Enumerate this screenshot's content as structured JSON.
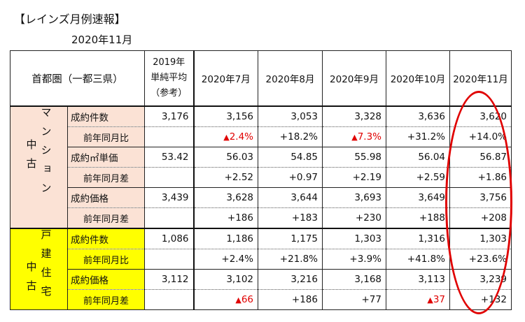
{
  "title": "【レインズ月例速報】",
  "subtitle": "2020年11月",
  "header": {
    "region": "首都圏（一都三県）",
    "avg_line1": "2019年",
    "avg_line2": "単純平均",
    "avg_line3": "（参考）",
    "months": [
      "2020年7月",
      "2020年8月",
      "2020年9月",
      "2020年10月",
      "2020年11月"
    ]
  },
  "mansion": {
    "side_left": "マンション",
    "side_right": "中古",
    "rows": [
      {
        "label": "成約件数",
        "avg": "3,176",
        "values": [
          "3,156",
          "3,053",
          "3,328",
          "3,636",
          "3,620"
        ]
      },
      {
        "label": "前年同月比",
        "avg": "",
        "values": [
          "2.4%",
          "+18.2%",
          "7.3%",
          "+31.2%",
          "+14.0%"
        ]
      },
      {
        "label": "成約㎡単価",
        "avg": "53.42",
        "values": [
          "56.03",
          "54.85",
          "55.98",
          "56.04",
          "56.87"
        ]
      },
      {
        "label": "前年同月差",
        "avg": "",
        "values": [
          "+2.52",
          "+0.97",
          "+2.19",
          "+2.59",
          "+1.86"
        ]
      },
      {
        "label": "成約価格",
        "avg": "3,439",
        "values": [
          "3,628",
          "3,644",
          "3,693",
          "3,649",
          "3,756"
        ]
      },
      {
        "label": "前年同月差",
        "avg": "",
        "values": [
          "+186",
          "+183",
          "+230",
          "+188",
          "+208"
        ]
      }
    ]
  },
  "house": {
    "side_left": "戸建住宅",
    "side_right": "中古",
    "rows": [
      {
        "label": "成約件数",
        "avg": "1,086",
        "values": [
          "1,186",
          "1,175",
          "1,303",
          "1,316",
          "1,303"
        ]
      },
      {
        "label": "前年同月比",
        "avg": "",
        "values": [
          "+2.4%",
          "+21.8%",
          "+3.9%",
          "+41.8%",
          "+23.6%"
        ]
      },
      {
        "label": "成約価格",
        "avg": "3,112",
        "values": [
          "3,102",
          "3,216",
          "3,168",
          "3,113",
          "3,239"
        ]
      },
      {
        "label": "前年同月差",
        "avg": "",
        "values": [
          "66",
          "+186",
          "+77",
          "37",
          "+132"
        ]
      }
    ]
  },
  "colors": {
    "negative": "#e00000",
    "mansion_bg": "#fbe2d5",
    "house_bg": "#ffff00",
    "highlight_circle": "#e00000"
  },
  "icons": {
    "negative_marker": "triangle-up-icon"
  }
}
